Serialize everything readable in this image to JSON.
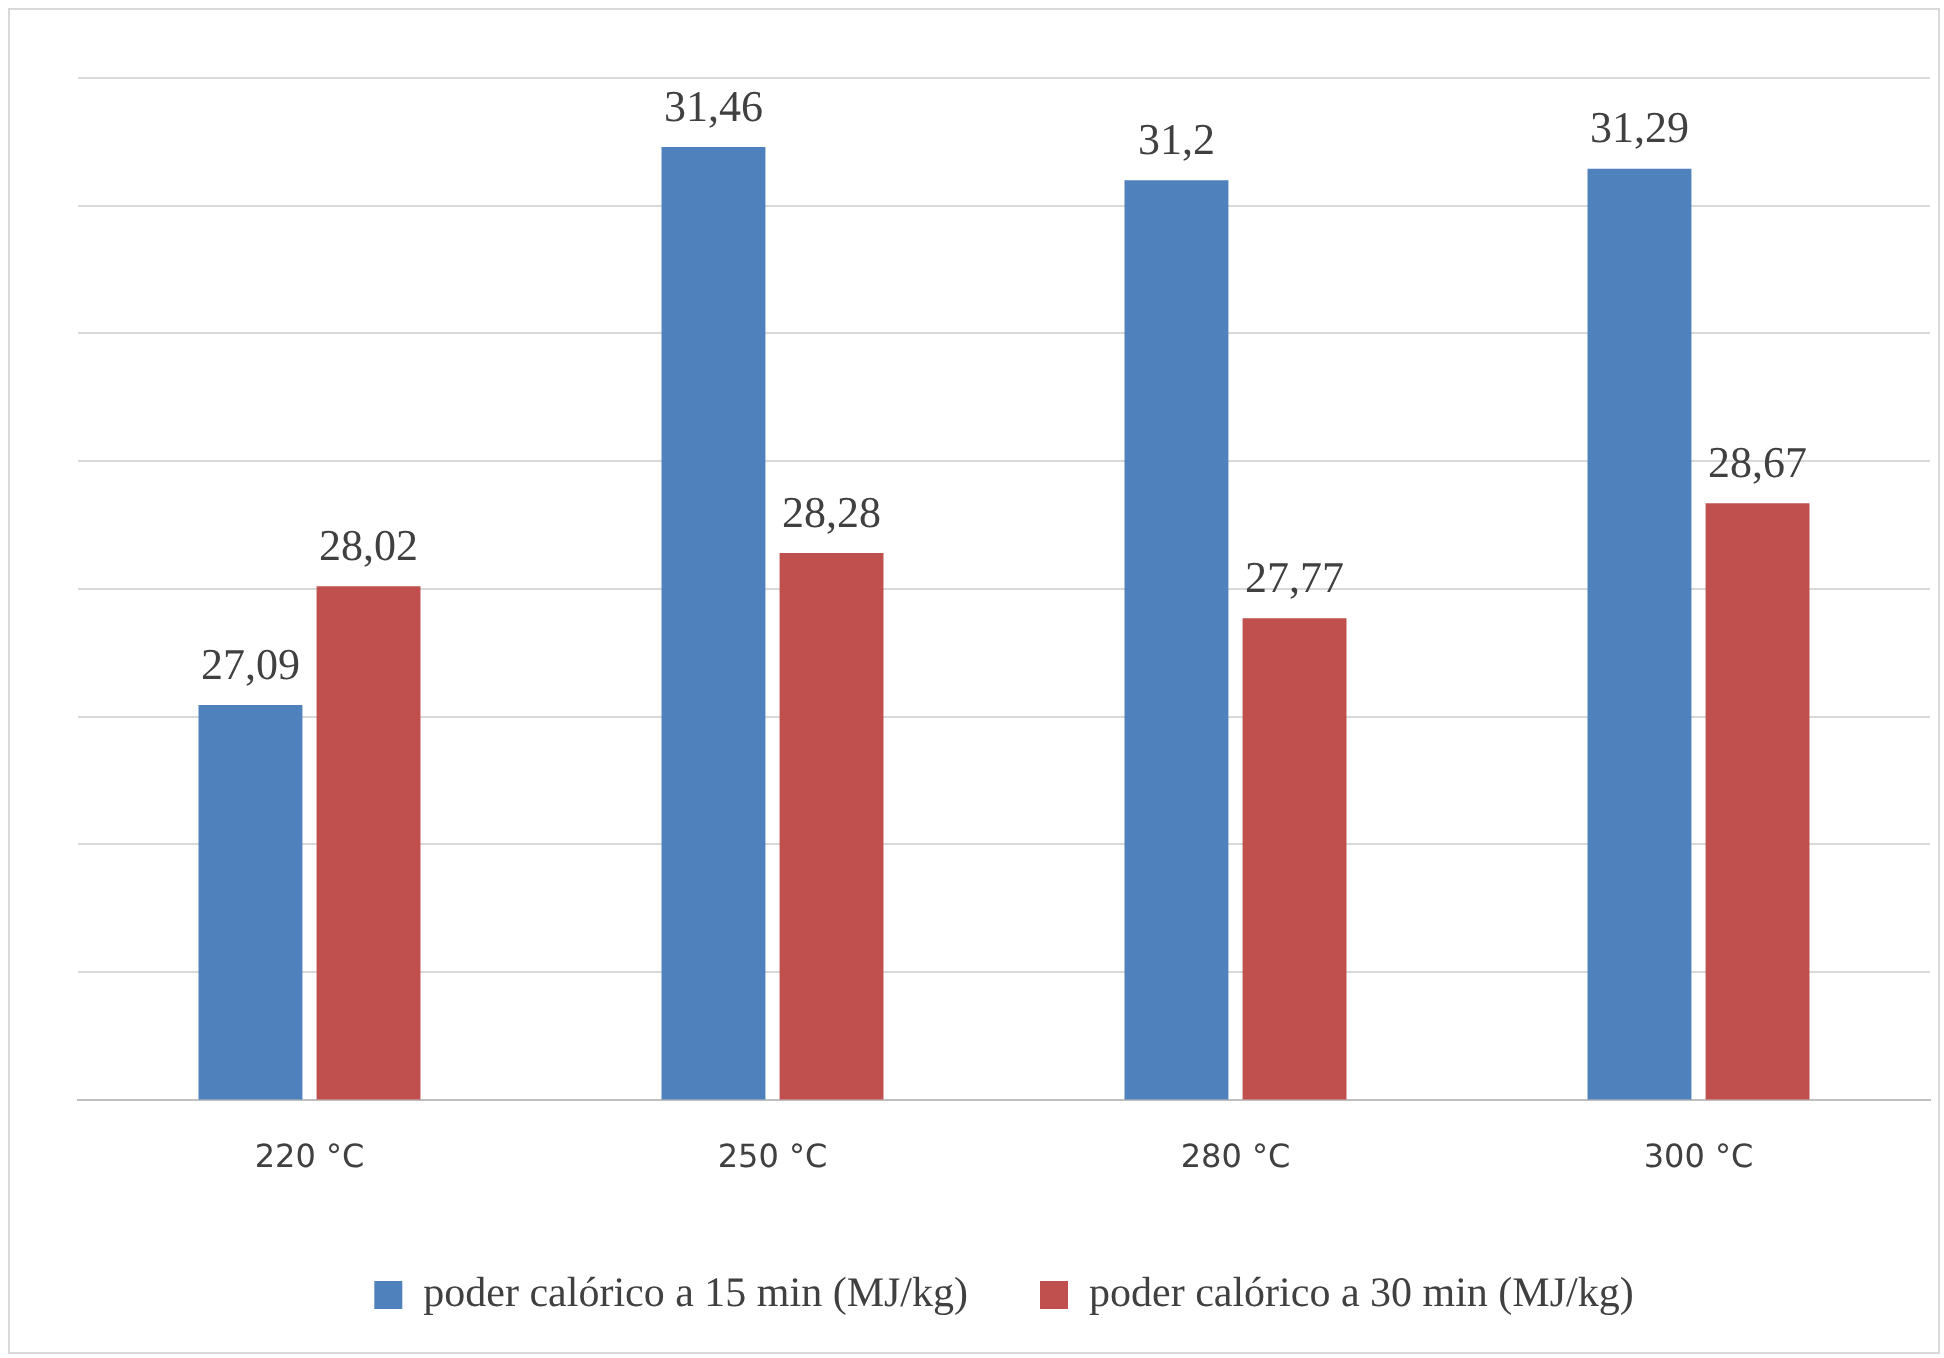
{
  "chart_data": {
    "type": "bar",
    "categories": [
      "220 °C",
      "250 °C",
      "280 °C",
      "300 °C"
    ],
    "series": [
      {
        "name": "poder calórico a 15 min (MJ/kg)",
        "color": "#4f81bd",
        "values": [
          27.09,
          31.46,
          31.2,
          31.29
        ],
        "value_labels": [
          "27,09",
          "31,46",
          "31,2",
          "31,29"
        ]
      },
      {
        "name": "poder calórico a 30 min (MJ/kg)",
        "color": "#c0504d",
        "values": [
          28.02,
          28.28,
          27.77,
          28.67
        ],
        "value_labels": [
          "28,02",
          "28,28",
          "27,77",
          "28,67"
        ]
      }
    ],
    "ylim": [
      24,
      32
    ],
    "yticks": [
      {
        "value": 24,
        "label": null
      },
      {
        "value": 25,
        "label": null
      },
      {
        "value": 26,
        "label": null
      },
      {
        "value": 27,
        "label": null
      },
      {
        "value": 28,
        "label": null
      },
      {
        "value": 29,
        "label": null
      },
      {
        "value": 30,
        "label": null
      },
      {
        "value": 31,
        "label": null
      },
      {
        "value": 32,
        "label": null
      }
    ],
    "grid": "y",
    "legend": "bottom",
    "tick_labels": "x"
  }
}
